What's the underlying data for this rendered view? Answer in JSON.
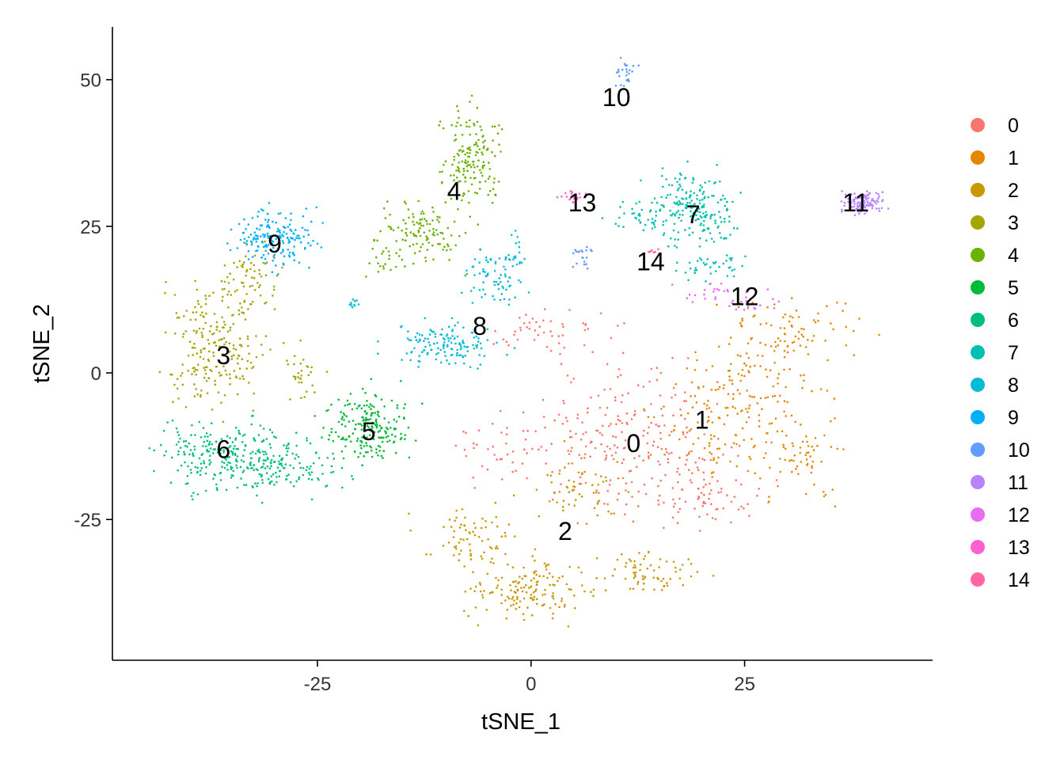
{
  "chart_data": {
    "type": "scatter",
    "title": "",
    "xlabel": "tSNE_1",
    "ylabel": "tSNE_2",
    "xlim": [
      -49,
      47
    ],
    "ylim": [
      -49,
      59
    ],
    "xticks": [
      -25,
      0,
      25
    ],
    "xtick_labels": [
      "-25",
      "0",
      "25"
    ],
    "yticks": [
      -25,
      0,
      25,
      50
    ],
    "ytick_labels": [
      "-25",
      "0",
      "25",
      "50"
    ],
    "grid": false,
    "legend_position": "right",
    "legend_title": "",
    "series": [
      {
        "name": "0",
        "color": "#F8766D",
        "label_at": [
          12,
          -12
        ],
        "blobs": [
          [
            12,
            -12,
            10,
            10,
            240
          ],
          [
            2,
            7,
            7,
            3,
            50
          ],
          [
            20,
            -22,
            6,
            4,
            50
          ],
          [
            -3,
            -14,
            5,
            5,
            40
          ]
        ]
      },
      {
        "name": "1",
        "color": "#E58700",
        "label_at": [
          20,
          -8
        ],
        "blobs": [
          [
            25,
            -7,
            8,
            10,
            200
          ],
          [
            30,
            7,
            7,
            5,
            90
          ],
          [
            32,
            -15,
            4,
            6,
            40
          ]
        ]
      },
      {
        "name": "2",
        "color": "#C99800",
        "label_at": [
          4,
          -27
        ],
        "blobs": [
          [
            0,
            -37,
            6,
            4,
            150
          ],
          [
            -7,
            -28,
            5,
            4,
            70
          ],
          [
            13,
            -34,
            5,
            3,
            70
          ],
          [
            6,
            -20,
            5,
            5,
            60
          ]
        ]
      },
      {
        "name": "3",
        "color": "#A3A500",
        "label_at": [
          -36,
          3
        ],
        "blobs": [
          [
            -37,
            5,
            5,
            9,
            220
          ],
          [
            -33,
            16,
            3,
            5,
            60
          ],
          [
            -27,
            0,
            2,
            4,
            30
          ]
        ]
      },
      {
        "name": "4",
        "color": "#6BB100",
        "label_at": [
          -9,
          31
        ],
        "blobs": [
          [
            -7,
            37,
            3,
            7,
            160
          ],
          [
            -13,
            24,
            4,
            4,
            120
          ],
          [
            -17,
            19,
            2,
            2,
            20
          ]
        ]
      },
      {
        "name": "5",
        "color": "#00BA38",
        "label_at": [
          -19,
          -10
        ],
        "blobs": [
          [
            -19,
            -9,
            4,
            5,
            200
          ]
        ]
      },
      {
        "name": "6",
        "color": "#00BF7D",
        "label_at": [
          -36,
          -13
        ],
        "blobs": [
          [
            -35,
            -14,
            7,
            5,
            260
          ],
          [
            -28,
            -16,
            5,
            4,
            90
          ]
        ]
      },
      {
        "name": "7",
        "color": "#00C0AF",
        "label_at": [
          19,
          27
        ],
        "blobs": [
          [
            19,
            28,
            4,
            5,
            200
          ],
          [
            13,
            27,
            3,
            2,
            40
          ],
          [
            21,
            18,
            3,
            2,
            40
          ]
        ]
      },
      {
        "name": "8",
        "color": "#00BCD8",
        "label_at": [
          -6,
          8
        ],
        "blobs": [
          [
            -10,
            5,
            5,
            3,
            140
          ],
          [
            -4,
            16,
            3,
            4,
            70
          ],
          [
            -2,
            21,
            1,
            3,
            20
          ],
          [
            -21,
            12,
            1,
            1,
            10
          ]
        ]
      },
      {
        "name": "9",
        "color": "#00B0F6",
        "label_at": [
          -30,
          22
        ],
        "blobs": [
          [
            -30,
            23,
            4,
            4,
            180
          ]
        ]
      },
      {
        "name": "10",
        "color": "#619CFF",
        "label_at": [
          10,
          47
        ],
        "blobs": [
          [
            11,
            51,
            1,
            2,
            25
          ],
          [
            6,
            20,
            1,
            2,
            20
          ]
        ]
      },
      {
        "name": "11",
        "color": "#B983FF",
        "label_at": [
          38,
          29
        ],
        "blobs": [
          [
            39,
            29,
            2,
            1.5,
            110
          ]
        ]
      },
      {
        "name": "12",
        "color": "#E76BF3",
        "label_at": [
          25,
          13
        ],
        "blobs": [
          [
            21,
            14,
            3,
            1.5,
            20
          ],
          [
            26,
            12,
            3,
            1.5,
            20
          ]
        ]
      },
      {
        "name": "13",
        "color": "#FD61D1",
        "label_at": [
          6,
          29
        ],
        "blobs": [
          [
            5,
            30,
            1.5,
            1,
            20
          ]
        ]
      },
      {
        "name": "14",
        "color": "#FF67A4",
        "label_at": [
          14,
          19
        ],
        "blobs": [
          [
            14,
            21,
            1,
            1,
            10
          ]
        ]
      }
    ]
  }
}
